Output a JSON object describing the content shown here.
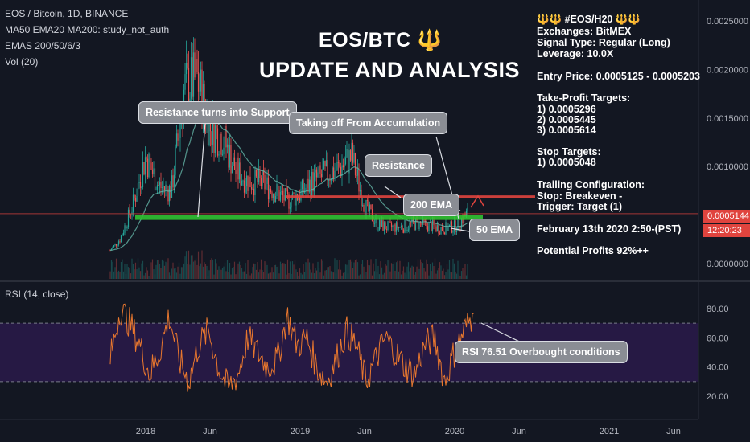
{
  "header": {
    "symbol": "EOS / Bitcoin, 1D, BINANCE",
    "study1": "MA50 EMA20 MA200: study_not_auth",
    "study2": "EMAS 200/50/6/3",
    "study3": "Vol (20)",
    "rsi_label": "RSI (14, close)"
  },
  "overlay": {
    "title_line1": "EOS/BTC 🔱",
    "title_line2": "UPDATE AND ANALYSIS"
  },
  "signal": {
    "heading": "🔱🔱 #EOS/H20 🔱🔱",
    "exchanges": "Exchanges: BitMEX",
    "signal_type": "Signal Type: Regular (Long)",
    "leverage": "Leverage: 10.0X",
    "entry": "Entry Price: 0.0005125 - 0.0005203",
    "tp_title": "Take-Profit Targets:",
    "tp1": "1) 0.0005296",
    "tp2": "2) 0.0005445",
    "tp3": "3) 0.0005614",
    "stop_title": "Stop Targets:",
    "stop1": "1) 0.0005048",
    "trail_title": "Trailing Configuration:",
    "trail_stop": "Stop: Breakeven -",
    "trail_trigger": "  Trigger: Target (1)",
    "date": "February 13th 2020 2:50-(PST)",
    "profits": "Potential Profits 92%++"
  },
  "callouts": {
    "support": "Resistance turns into Support",
    "accumulation": "Taking off From Accumulation",
    "resistance": "Resistance",
    "ema200": "200 EMA",
    "ema50": "50 EMA",
    "rsi": "RSI 76.51 Overbought conditions"
  },
  "price_tags": {
    "last_price": "0.0005144",
    "countdown": "12:20:23"
  },
  "colors": {
    "background": "#131722",
    "up": "#26a69a",
    "down": "#ef5350",
    "support_zone": "#33cc33",
    "resistance_line": "#e0443e",
    "rsi_band": "#2a1a4a",
    "rsi_line": "#e8772e",
    "ema": "#64b5a8"
  },
  "chart_data": [
    {
      "type": "candlestick",
      "title": "EOS / Bitcoin, 1D, BINANCE",
      "y_ticks": [
        "0.0025000",
        "0.0020000",
        "0.0015000",
        "0.0010000",
        "0.0005000",
        "0.0000000"
      ],
      "ylim": [
        0,
        0.0026
      ],
      "x_ticks": [
        "2018",
        "Jun",
        "2019",
        "Jun",
        "2020",
        "Jun",
        "2021",
        "Jun"
      ],
      "x_tick_dates": [
        "2018-01",
        "2018-06",
        "2019-01",
        "2019-06",
        "2020-01",
        "2020-06",
        "2021-01",
        "2021-06"
      ],
      "last_price": 0.0005144,
      "resistance_level": 0.00069,
      "support_zone": [
        0.00045,
        0.0005
      ],
      "close_series": [
        {
          "date": "2017-10",
          "value": 0.0001
        },
        {
          "date": "2017-11",
          "value": 0.00025
        },
        {
          "date": "2017-12",
          "value": 0.0006
        },
        {
          "date": "2018-01",
          "value": 0.0011
        },
        {
          "date": "2018-02",
          "value": 0.0008
        },
        {
          "date": "2018-03",
          "value": 0.00075
        },
        {
          "date": "2018-04",
          "value": 0.0018
        },
        {
          "date": "2018-05",
          "value": 0.0019
        },
        {
          "date": "2018-06",
          "value": 0.0014
        },
        {
          "date": "2018-07",
          "value": 0.0013
        },
        {
          "date": "2018-08",
          "value": 0.00095
        },
        {
          "date": "2018-09",
          "value": 0.00085
        },
        {
          "date": "2018-10",
          "value": 0.00083
        },
        {
          "date": "2018-11",
          "value": 0.00075
        },
        {
          "date": "2018-12",
          "value": 0.00065
        },
        {
          "date": "2019-01",
          "value": 0.00072
        },
        {
          "date": "2019-02",
          "value": 0.00085
        },
        {
          "date": "2019-03",
          "value": 0.00092
        },
        {
          "date": "2019-04",
          "value": 0.00098
        },
        {
          "date": "2019-05",
          "value": 0.0011
        },
        {
          "date": "2019-06",
          "value": 0.0006
        },
        {
          "date": "2019-07",
          "value": 0.0004
        },
        {
          "date": "2019-08",
          "value": 0.00037
        },
        {
          "date": "2019-09",
          "value": 0.00038
        },
        {
          "date": "2019-10",
          "value": 0.00041
        },
        {
          "date": "2019-11",
          "value": 0.00039
        },
        {
          "date": "2019-12",
          "value": 0.00036
        },
        {
          "date": "2020-01",
          "value": 0.00038
        },
        {
          "date": "2020-02",
          "value": 0.0005144
        }
      ]
    },
    {
      "type": "line",
      "title": "RSI (14, close)",
      "y_ticks": [
        "80.00",
        "60.00",
        "40.00",
        "20.00"
      ],
      "ylim": [
        10,
        90
      ],
      "band": [
        30,
        70
      ],
      "last_value": 76.51,
      "series": [
        {
          "values": [
            45,
            80,
            70,
            55,
            35,
            50,
            75,
            45,
            30,
            55,
            65,
            40,
            25,
            35,
            60,
            50,
            40,
            45,
            75,
            55,
            60,
            40,
            30,
            45,
            65,
            55,
            30,
            45,
            60,
            50,
            40,
            35,
            55,
            60,
            30,
            50,
            65,
            76.51
          ]
        }
      ]
    }
  ]
}
